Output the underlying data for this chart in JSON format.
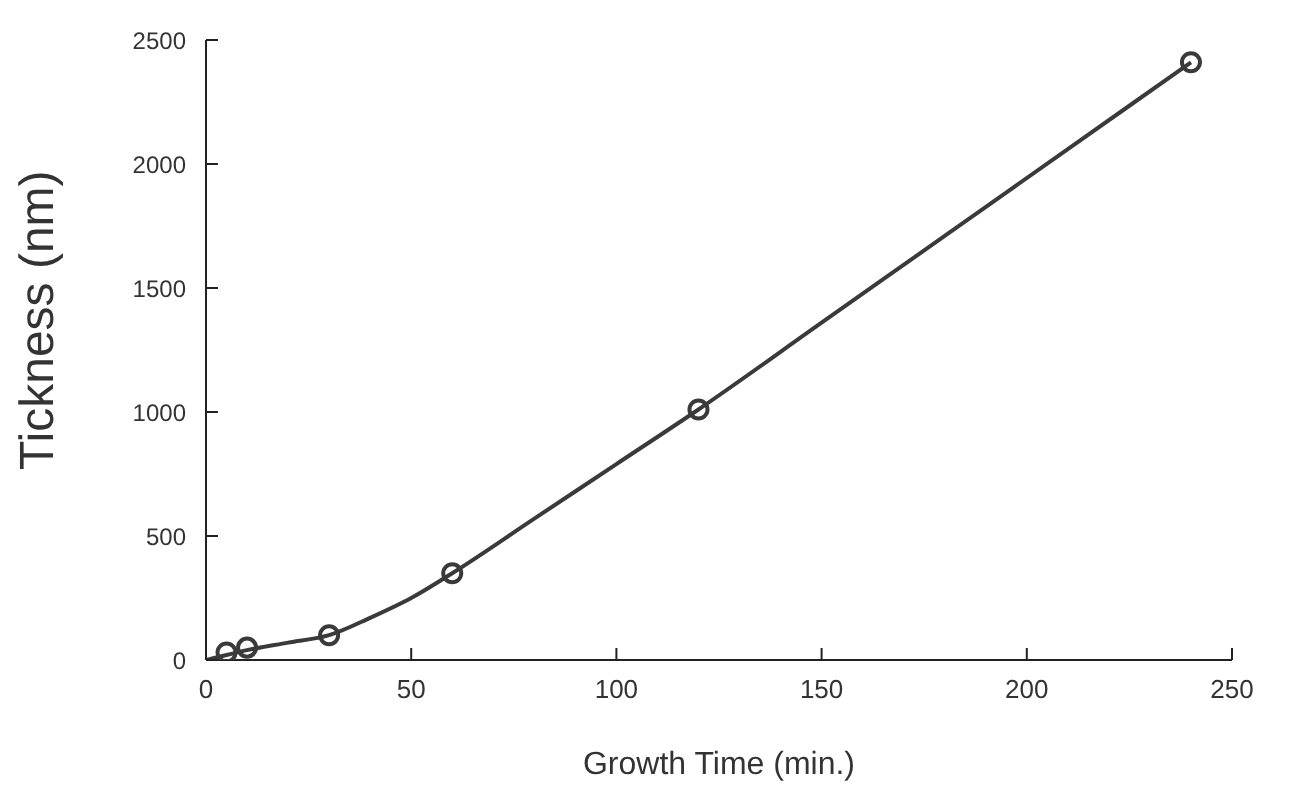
{
  "chart_data": {
    "type": "scatter",
    "xlabel": "Growth Time (min.)",
    "ylabel": "Tickness (nm)",
    "xlim": [
      0,
      250
    ],
    "xticks": [
      0,
      50,
      100,
      150,
      200,
      250
    ],
    "ylim": [
      0,
      2500
    ],
    "yticks": [
      0,
      500,
      1000,
      1500,
      2000,
      2500
    ],
    "marker": "circle",
    "series": [
      {
        "color": "#3a3a3a",
        "x": [
          5,
          10,
          30,
          60,
          120,
          240
        ],
        "values": [
          30,
          50,
          100,
          350,
          1010,
          2410
        ]
      },
      {
        "type": "line",
        "color": "#3a3a3a",
        "line_style": "solid",
        "marker": "none",
        "x": [
          0,
          5,
          10,
          20,
          30,
          40,
          50,
          60,
          80,
          100,
          120,
          150,
          180,
          210,
          240
        ],
        "values": [
          0,
          20,
          40,
          70,
          100,
          170,
          250,
          350,
          570,
          790,
          1010,
          1360,
          1710,
          2060,
          2410
        ]
      }
    ]
  }
}
